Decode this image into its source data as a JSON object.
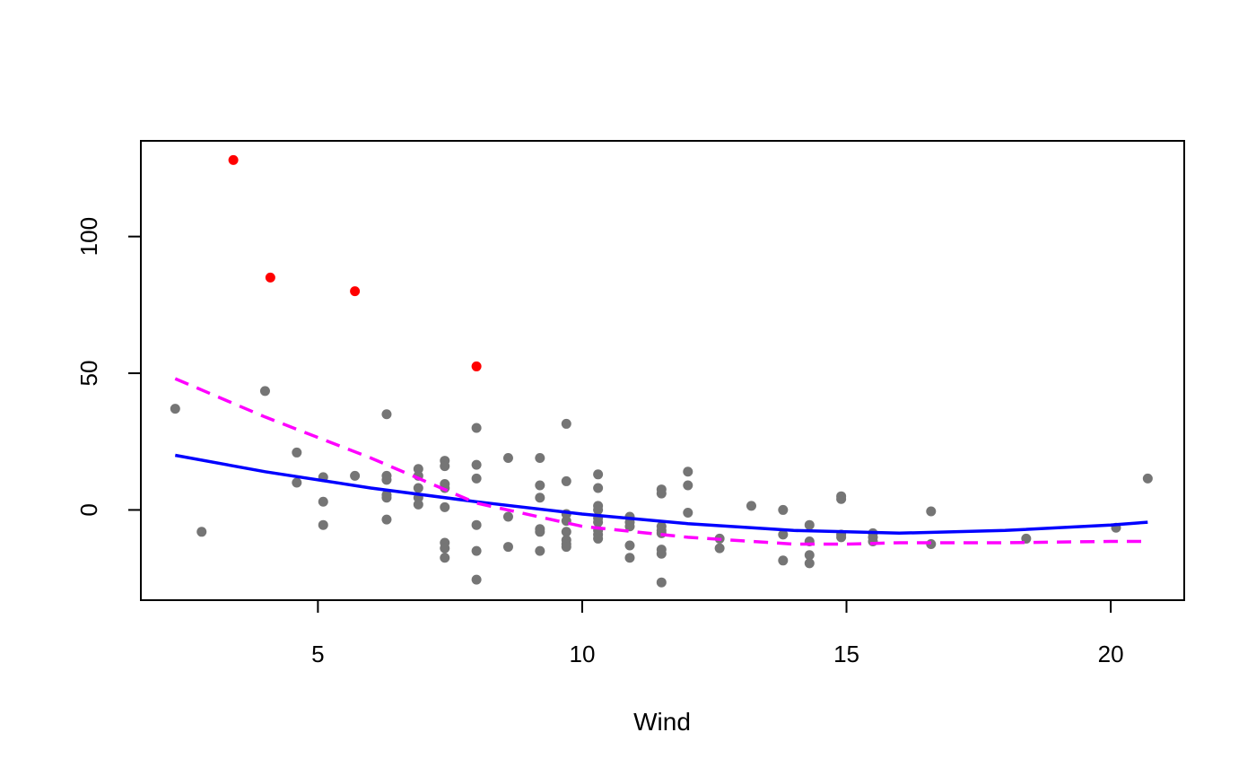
{
  "chart_data": {
    "type": "scatter",
    "title": "",
    "xlabel": "Wind",
    "ylabel": "",
    "xlim": [
      1.65,
      21.39
    ],
    "ylim": [
      -33,
      135
    ],
    "xticks": [
      5,
      10,
      15,
      20
    ],
    "yticks": [
      0,
      50,
      100
    ],
    "grid": false,
    "colors": {
      "points": "#757575",
      "highlight": "#ff0000",
      "solid_line": "#0000ff",
      "dashed_line": "#ff00ff",
      "frame": "#000000"
    },
    "points": [
      {
        "x": 2.3,
        "y": 37
      },
      {
        "x": 2.8,
        "y": -8
      },
      {
        "x": 4.0,
        "y": 43.5
      },
      {
        "x": 4.6,
        "y": 21
      },
      {
        "x": 4.6,
        "y": 10
      },
      {
        "x": 5.1,
        "y": 12
      },
      {
        "x": 5.1,
        "y": 3
      },
      {
        "x": 5.1,
        "y": -5.5
      },
      {
        "x": 5.7,
        "y": 12.5
      },
      {
        "x": 6.3,
        "y": 35
      },
      {
        "x": 6.3,
        "y": 12.5
      },
      {
        "x": 6.3,
        "y": 11
      },
      {
        "x": 6.3,
        "y": 5.5
      },
      {
        "x": 6.3,
        "y": 4.5
      },
      {
        "x": 6.3,
        "y": -3.5
      },
      {
        "x": 6.9,
        "y": 15
      },
      {
        "x": 6.9,
        "y": 12.5
      },
      {
        "x": 6.9,
        "y": 8
      },
      {
        "x": 6.9,
        "y": 4.5
      },
      {
        "x": 6.9,
        "y": 2
      },
      {
        "x": 7.4,
        "y": 18
      },
      {
        "x": 7.4,
        "y": 16
      },
      {
        "x": 7.4,
        "y": 9.5
      },
      {
        "x": 7.4,
        "y": 8
      },
      {
        "x": 7.4,
        "y": 1
      },
      {
        "x": 7.4,
        "y": -12
      },
      {
        "x": 7.4,
        "y": -14
      },
      {
        "x": 7.4,
        "y": -17.5
      },
      {
        "x": 8.0,
        "y": 30
      },
      {
        "x": 8.0,
        "y": 16.5
      },
      {
        "x": 8.0,
        "y": 11.5
      },
      {
        "x": 8.0,
        "y": -5.5
      },
      {
        "x": 8.0,
        "y": -15
      },
      {
        "x": 8.0,
        "y": -25.5
      },
      {
        "x": 8.6,
        "y": 19
      },
      {
        "x": 8.6,
        "y": -2.5
      },
      {
        "x": 8.6,
        "y": -13.5
      },
      {
        "x": 9.2,
        "y": 19
      },
      {
        "x": 9.2,
        "y": 9
      },
      {
        "x": 9.2,
        "y": 4.5
      },
      {
        "x": 9.2,
        "y": -7
      },
      {
        "x": 9.2,
        "y": -8
      },
      {
        "x": 9.2,
        "y": -15
      },
      {
        "x": 9.7,
        "y": 31.5
      },
      {
        "x": 9.7,
        "y": 10.5
      },
      {
        "x": 9.7,
        "y": -1.5
      },
      {
        "x": 9.7,
        "y": -4
      },
      {
        "x": 9.7,
        "y": -8
      },
      {
        "x": 9.7,
        "y": -11
      },
      {
        "x": 9.7,
        "y": -12.5
      },
      {
        "x": 9.7,
        "y": -13.5
      },
      {
        "x": 10.3,
        "y": 13
      },
      {
        "x": 10.3,
        "y": 8
      },
      {
        "x": 10.3,
        "y": 1.5
      },
      {
        "x": 10.3,
        "y": 0
      },
      {
        "x": 10.3,
        "y": -3
      },
      {
        "x": 10.3,
        "y": -4.5
      },
      {
        "x": 10.3,
        "y": -7.5
      },
      {
        "x": 10.3,
        "y": -9
      },
      {
        "x": 10.3,
        "y": -10.5
      },
      {
        "x": 10.9,
        "y": -2.5
      },
      {
        "x": 10.9,
        "y": -4.5
      },
      {
        "x": 10.9,
        "y": -6
      },
      {
        "x": 10.9,
        "y": -13
      },
      {
        "x": 10.9,
        "y": -17.5
      },
      {
        "x": 11.5,
        "y": 7.5
      },
      {
        "x": 11.5,
        "y": 6
      },
      {
        "x": 11.5,
        "y": -6
      },
      {
        "x": 11.5,
        "y": -7.5
      },
      {
        "x": 11.5,
        "y": -8.5
      },
      {
        "x": 11.5,
        "y": -14.5
      },
      {
        "x": 11.5,
        "y": -16
      },
      {
        "x": 11.5,
        "y": -26.5
      },
      {
        "x": 12.0,
        "y": 14
      },
      {
        "x": 12.0,
        "y": 9
      },
      {
        "x": 12.0,
        "y": -1
      },
      {
        "x": 12.6,
        "y": -10.5
      },
      {
        "x": 12.6,
        "y": -14
      },
      {
        "x": 13.2,
        "y": 1.5
      },
      {
        "x": 13.8,
        "y": 0
      },
      {
        "x": 13.8,
        "y": -9
      },
      {
        "x": 13.8,
        "y": -18.5
      },
      {
        "x": 14.3,
        "y": -5.5
      },
      {
        "x": 14.3,
        "y": -11.5
      },
      {
        "x": 14.3,
        "y": -16.5
      },
      {
        "x": 14.3,
        "y": -19.5
      },
      {
        "x": 14.9,
        "y": 5
      },
      {
        "x": 14.9,
        "y": 4
      },
      {
        "x": 14.9,
        "y": -9
      },
      {
        "x": 14.9,
        "y": -10
      },
      {
        "x": 15.5,
        "y": -8.5
      },
      {
        "x": 15.5,
        "y": -10
      },
      {
        "x": 15.5,
        "y": -11.5
      },
      {
        "x": 16.6,
        "y": -0.5
      },
      {
        "x": 16.6,
        "y": -12.5
      },
      {
        "x": 18.4,
        "y": -10.5
      },
      {
        "x": 20.1,
        "y": -6.5
      },
      {
        "x": 20.7,
        "y": 11.5
      }
    ],
    "highlighted_points": [
      {
        "x": 3.4,
        "y": 128
      },
      {
        "x": 4.1,
        "y": 85
      },
      {
        "x": 5.7,
        "y": 80
      },
      {
        "x": 8.0,
        "y": 52.5
      }
    ],
    "lines": [
      {
        "style": "solid",
        "x": [
          2.3,
          4,
          6,
          8,
          10,
          12,
          14,
          16,
          18,
          20,
          20.7
        ],
        "y": [
          20,
          14,
          8,
          3,
          -1.5,
          -5,
          -7.5,
          -8.5,
          -7.5,
          -5.5,
          -4.5
        ]
      },
      {
        "style": "dashed",
        "x": [
          2.3,
          4,
          6,
          8,
          10,
          12,
          14,
          15,
          16,
          18,
          20,
          20.7
        ],
        "y": [
          48,
          34,
          19,
          2.5,
          -6,
          -10,
          -12.5,
          -12.5,
          -12,
          -12,
          -11.5,
          -11.5
        ]
      }
    ]
  }
}
